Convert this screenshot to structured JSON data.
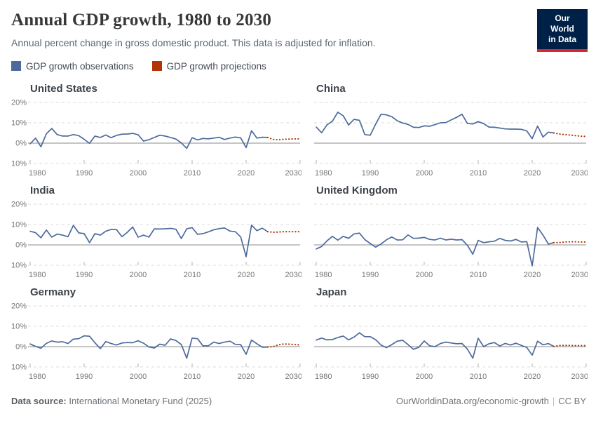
{
  "header": {
    "title": "Annual GDP growth, 1980 to 2030",
    "subtitle": "Annual percent change in gross domestic product. This data is adjusted for inflation.",
    "logo": {
      "line1": "Our World",
      "line2": "in Data",
      "bg_color": "#002147",
      "bar_color": "#d7282f"
    }
  },
  "legend": [
    {
      "label": "GDP growth observations",
      "color": "#4C6A9C"
    },
    {
      "label": "GDP growth projections",
      "color": "#B13507"
    }
  ],
  "footer": {
    "source_label": "Data source:",
    "source_value": " International Monetary Fund (2025)",
    "link": "OurWorldinData.org/economic-growth",
    "separator": "|",
    "license": "CC BY"
  },
  "chart_data": {
    "type": "line",
    "xlim": [
      1980,
      2030
    ],
    "ylim": [
      -10,
      20
    ],
    "x_ticks": [
      1980,
      1990,
      2000,
      2010,
      2020,
      2030
    ],
    "y_ticks": [
      20,
      10,
      0,
      -10
    ],
    "y_tick_labels": [
      "20%",
      "10%",
      "0%",
      "-10%"
    ],
    "grid": true,
    "legend_position": "top",
    "colors": {
      "observations": "#4C6A9C",
      "projections": "#B13507",
      "grid": "#DBDBDB",
      "zero_line": "#8B8B8B",
      "tick": "#B3B3B3",
      "axis_text": "#757575"
    },
    "panels": [
      {
        "country": "United States",
        "obs_start_year": 1980,
        "observations": [
          -0.3,
          2.5,
          -1.8,
          4.6,
          7.2,
          4.2,
          3.5,
          3.5,
          4.2,
          3.7,
          1.9,
          -0.1,
          3.5,
          2.8,
          4.0,
          2.7,
          3.8,
          4.4,
          4.5,
          4.8,
          4.1,
          1.0,
          1.7,
          2.8,
          3.9,
          3.5,
          2.8,
          2.0,
          0.1,
          -2.6,
          2.7,
          1.6,
          2.3,
          2.1,
          2.5,
          2.9,
          1.8,
          2.5,
          3.0,
          2.6,
          -2.2,
          6.1,
          2.5,
          2.9,
          2.8
        ],
        "proj_start_year": 2024,
        "projections": [
          2.8,
          1.8,
          1.7,
          1.9,
          2.0,
          2.1,
          2.1
        ]
      },
      {
        "country": "China",
        "obs_start_year": 1980,
        "observations": [
          7.9,
          5.1,
          9.0,
          10.8,
          15.2,
          13.4,
          8.9,
          11.7,
          11.2,
          4.2,
          3.9,
          9.3,
          14.2,
          13.9,
          13.0,
          11.0,
          9.9,
          9.2,
          7.8,
          7.7,
          8.5,
          8.3,
          9.1,
          10.0,
          10.1,
          11.4,
          12.7,
          14.2,
          9.7,
          9.4,
          10.6,
          9.6,
          7.9,
          7.8,
          7.4,
          7.0,
          6.9,
          6.9,
          6.8,
          6.0,
          2.2,
          8.4,
          3.0,
          5.4,
          5.0
        ],
        "proj_start_year": 2024,
        "projections": [
          5.0,
          4.5,
          4.2,
          4.0,
          3.7,
          3.4,
          3.3
        ]
      },
      {
        "country": "India",
        "obs_start_year": 1980,
        "observations": [
          6.7,
          6.0,
          3.5,
          7.3,
          3.8,
          5.3,
          4.8,
          4.0,
          9.6,
          5.9,
          5.5,
          1.1,
          5.5,
          4.8,
          6.7,
          7.6,
          7.5,
          4.0,
          6.2,
          8.8,
          3.8,
          4.8,
          3.8,
          7.9,
          7.8,
          7.9,
          8.1,
          7.7,
          3.1,
          7.9,
          8.5,
          5.2,
          5.5,
          6.4,
          7.4,
          8.0,
          8.3,
          6.8,
          6.5,
          3.9,
          -5.8,
          9.7,
          7.0,
          8.2,
          6.5
        ],
        "proj_start_year": 2024,
        "projections": [
          6.5,
          6.2,
          6.3,
          6.5,
          6.5,
          6.5,
          6.5
        ]
      },
      {
        "country": "United Kingdom",
        "obs_start_year": 1980,
        "observations": [
          -2.0,
          -0.8,
          2.0,
          4.2,
          2.3,
          4.2,
          3.2,
          5.4,
          5.8,
          2.6,
          0.7,
          -1.1,
          0.4,
          2.5,
          3.9,
          2.4,
          2.5,
          4.9,
          3.2,
          3.3,
          3.7,
          2.7,
          2.4,
          3.3,
          2.4,
          2.8,
          2.4,
          2.6,
          -0.2,
          -4.6,
          2.2,
          1.1,
          1.5,
          1.8,
          3.2,
          2.2,
          1.9,
          2.7,
          1.4,
          1.6,
          -10.3,
          8.6,
          4.8,
          0.4,
          1.1
        ],
        "proj_start_year": 2024,
        "projections": [
          1.1,
          1.1,
          1.4,
          1.5,
          1.5,
          1.4,
          1.4
        ]
      },
      {
        "country": "Germany",
        "obs_start_year": 1980,
        "observations": [
          1.3,
          0.1,
          -0.8,
          1.6,
          2.8,
          2.2,
          2.4,
          1.5,
          3.7,
          3.9,
          5.3,
          5.1,
          1.9,
          -1.0,
          2.5,
          1.5,
          0.8,
          1.8,
          2.0,
          1.9,
          2.9,
          1.7,
          -0.2,
          -0.7,
          1.2,
          0.7,
          3.8,
          3.0,
          1.0,
          -5.7,
          4.2,
          3.9,
          0.4,
          0.4,
          2.2,
          1.5,
          2.2,
          2.7,
          1.1,
          1.0,
          -3.8,
          3.2,
          1.4,
          -0.3,
          -0.2
        ],
        "proj_start_year": 2024,
        "projections": [
          -0.2,
          0.0,
          0.9,
          1.3,
          1.2,
          1.0,
          0.9
        ]
      },
      {
        "country": "Japan",
        "obs_start_year": 1980,
        "observations": [
          3.2,
          4.2,
          3.3,
          3.5,
          4.5,
          5.2,
          3.3,
          4.7,
          6.8,
          4.9,
          4.9,
          3.4,
          0.8,
          -0.5,
          1.0,
          2.7,
          3.1,
          1.0,
          -1.3,
          -0.3,
          2.8,
          0.4,
          0.0,
          1.5,
          2.2,
          1.8,
          1.4,
          1.5,
          -1.2,
          -5.7,
          4.1,
          0.0,
          1.4,
          2.0,
          0.3,
          1.6,
          0.8,
          1.7,
          0.6,
          -0.4,
          -4.2,
          2.7,
          0.9,
          1.5,
          0.1
        ],
        "proj_start_year": 2024,
        "projections": [
          0.1,
          0.6,
          0.6,
          0.6,
          0.5,
          0.5,
          0.5
        ]
      }
    ]
  }
}
